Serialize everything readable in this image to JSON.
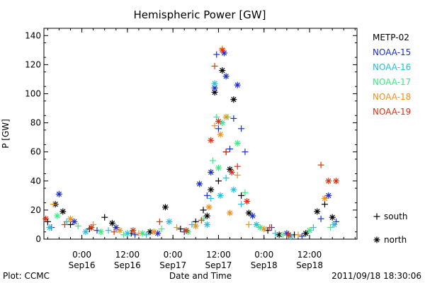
{
  "chart_data": {
    "type": "scatter",
    "title": "Hemispheric Power [GW]",
    "xlabel": "Date and Time",
    "ylabel": "P [GW]",
    "ylim": [
      0,
      145
    ],
    "xlim": [
      "2011-09-15T14:00",
      "2011-09-19T00:30"
    ],
    "yticks": [
      0,
      20,
      40,
      60,
      80,
      100,
      120,
      140
    ],
    "xticks": [
      {
        "at": "2011-09-16T00:00",
        "time": "0:00",
        "date": "Sep16"
      },
      {
        "at": "2011-09-16T12:00",
        "time": "12:00",
        "date": "Sep16"
      },
      {
        "at": "2011-09-17T00:00",
        "time": "0:00",
        "date": "Sep17"
      },
      {
        "at": "2011-09-17T12:00",
        "time": "12:00",
        "date": "Sep17"
      },
      {
        "at": "2011-09-18T00:00",
        "time": "0:00",
        "date": "Sep18"
      },
      {
        "at": "2011-09-18T12:00",
        "time": "12:00",
        "date": "Sep18"
      }
    ],
    "marker_key": [
      {
        "marker": "+",
        "label": "south"
      },
      {
        "marker": "*",
        "label": "north"
      }
    ],
    "series": [
      {
        "name": "METP-02",
        "color": "#000000",
        "points": [
          [
            "2011-09-15T15:00",
            12,
            "+"
          ],
          [
            "2011-09-15T17:00",
            24,
            "*"
          ],
          [
            "2011-09-15T19:00",
            19,
            "*"
          ],
          [
            "2011-09-15T21:00",
            10,
            "+"
          ],
          [
            "2011-09-16T02:00",
            7,
            "+"
          ],
          [
            "2011-09-16T06:00",
            15,
            "+"
          ],
          [
            "2011-09-16T08:00",
            11,
            "*"
          ],
          [
            "2011-09-16T13:00",
            4,
            "+"
          ],
          [
            "2011-09-16T18:00",
            5,
            "*"
          ],
          [
            "2011-09-16T22:00",
            22,
            "*"
          ],
          [
            "2011-09-17T02:00",
            7,
            "+"
          ],
          [
            "2011-09-17T06:00",
            12,
            "+"
          ],
          [
            "2011-09-17T08:00",
            20,
            "+"
          ],
          [
            "2011-09-17T09:00",
            16,
            "*"
          ],
          [
            "2011-09-17T10:00",
            34,
            "*"
          ],
          [
            "2011-09-17T11:00",
            101,
            "*"
          ],
          [
            "2011-09-17T12:00",
            40,
            "+"
          ],
          [
            "2011-09-17T13:00",
            116,
            "*"
          ],
          [
            "2011-09-17T14:00",
            60,
            "+"
          ],
          [
            "2011-09-17T15:00",
            48,
            "*"
          ],
          [
            "2011-09-17T16:00",
            96,
            "*"
          ],
          [
            "2011-09-17T18:00",
            30,
            "+"
          ],
          [
            "2011-09-17T20:00",
            18,
            "*"
          ],
          [
            "2011-09-18T01:00",
            6,
            "+"
          ],
          [
            "2011-09-18T04:00",
            3,
            "*"
          ],
          [
            "2011-09-18T08:00",
            3,
            "+"
          ],
          [
            "2011-09-18T11:00",
            4,
            "*"
          ],
          [
            "2011-09-18T14:00",
            19,
            "*"
          ],
          [
            "2011-09-18T16:00",
            24,
            "+"
          ],
          [
            "2011-09-18T18:00",
            15,
            "*"
          ]
        ]
      },
      {
        "name": "NOAA-15",
        "color": "#1a2fd0",
        "points": [
          [
            "2011-09-15T16:00",
            8,
            "+"
          ],
          [
            "2011-09-15T18:00",
            31,
            "*"
          ],
          [
            "2011-09-15T22:00",
            12,
            "*"
          ],
          [
            "2011-09-16T04:00",
            6,
            "+"
          ],
          [
            "2011-09-16T09:00",
            8,
            "*"
          ],
          [
            "2011-09-16T14:00",
            3,
            "+"
          ],
          [
            "2011-09-16T20:00",
            4,
            "*"
          ],
          [
            "2011-09-17T03:00",
            5,
            "+"
          ],
          [
            "2011-09-17T07:00",
            38,
            "*"
          ],
          [
            "2011-09-17T09:00",
            30,
            "+"
          ],
          [
            "2011-09-17T10:00",
            46,
            "*"
          ],
          [
            "2011-09-17T11:00",
            104,
            "*"
          ],
          [
            "2011-09-17T11:30",
            127,
            "+"
          ],
          [
            "2011-09-17T12:00",
            76,
            "+"
          ],
          [
            "2011-09-17T13:30",
            128,
            "*"
          ],
          [
            "2011-09-17T14:00",
            112,
            "*"
          ],
          [
            "2011-09-17T15:00",
            62,
            "+"
          ],
          [
            "2011-09-17T16:00",
            83,
            "+"
          ],
          [
            "2011-09-17T17:00",
            106,
            "*"
          ],
          [
            "2011-09-17T18:00",
            76,
            "+"
          ],
          [
            "2011-09-17T19:00",
            60,
            "+"
          ],
          [
            "2011-09-17T21:00",
            16,
            "*"
          ],
          [
            "2011-09-18T02:00",
            8,
            "+"
          ],
          [
            "2011-09-18T06:00",
            4,
            "*"
          ],
          [
            "2011-09-18T10:00",
            2,
            "+"
          ],
          [
            "2011-09-18T15:00",
            14,
            "+"
          ],
          [
            "2011-09-18T17:00",
            30,
            "*"
          ],
          [
            "2011-09-18T19:00",
            12,
            "+"
          ]
        ]
      },
      {
        "name": "NOAA-16",
        "color": "#20c0e0",
        "points": [
          [
            "2011-09-15T15:30",
            8,
            "*"
          ],
          [
            "2011-09-15T20:00",
            12,
            "+"
          ],
          [
            "2011-09-16T01:00",
            5,
            "*"
          ],
          [
            "2011-09-16T07:00",
            6,
            "+"
          ],
          [
            "2011-09-16T12:00",
            4,
            "*"
          ],
          [
            "2011-09-16T17:00",
            3,
            "+"
          ],
          [
            "2011-09-16T23:00",
            12,
            "*"
          ],
          [
            "2011-09-17T05:00",
            10,
            "+"
          ],
          [
            "2011-09-17T09:00",
            10,
            "*"
          ],
          [
            "2011-09-17T10:00",
            28,
            "+"
          ],
          [
            "2011-09-17T11:00",
            107,
            "*"
          ],
          [
            "2011-09-17T12:30",
            30,
            "*"
          ],
          [
            "2011-09-17T14:00",
            42,
            "+"
          ],
          [
            "2011-09-17T16:00",
            34,
            "*"
          ],
          [
            "2011-09-17T18:00",
            24,
            "+"
          ],
          [
            "2011-09-17T22:00",
            10,
            "*"
          ],
          [
            "2011-09-18T03:00",
            4,
            "+"
          ],
          [
            "2011-09-18T07:00",
            2,
            "*"
          ],
          [
            "2011-09-18T13:00",
            8,
            "+"
          ],
          [
            "2011-09-18T18:30",
            10,
            "*"
          ]
        ]
      },
      {
        "name": "NOAA-17",
        "color": "#30f080",
        "points": [
          [
            "2011-09-15T17:30",
            16,
            "*"
          ],
          [
            "2011-09-15T23:00",
            9,
            "+"
          ],
          [
            "2011-09-16T05:00",
            5,
            "*"
          ],
          [
            "2011-09-16T11:00",
            3,
            "+"
          ],
          [
            "2011-09-16T16:00",
            4,
            "*"
          ],
          [
            "2011-09-16T21:00",
            7,
            "+"
          ],
          [
            "2011-09-17T04:00",
            5,
            "*"
          ],
          [
            "2011-09-17T08:00",
            14,
            "+"
          ],
          [
            "2011-09-17T10:30",
            54,
            "+"
          ],
          [
            "2011-09-17T11:30",
            84,
            "+"
          ],
          [
            "2011-09-17T12:00",
            49,
            "*"
          ],
          [
            "2011-09-17T13:00",
            80,
            "*"
          ],
          [
            "2011-09-17T14:30",
            84,
            "+"
          ],
          [
            "2011-09-17T17:00",
            66,
            "*"
          ],
          [
            "2011-09-17T19:00",
            32,
            "+"
          ],
          [
            "2011-09-17T23:00",
            8,
            "*"
          ],
          [
            "2011-09-18T05:00",
            3,
            "+"
          ],
          [
            "2011-09-18T12:00",
            6,
            "*"
          ],
          [
            "2011-09-18T17:30",
            8,
            "+"
          ]
        ]
      },
      {
        "name": "NOAA-18",
        "color": "#f0901a",
        "points": [
          [
            "2011-09-15T16:30",
            24,
            "+"
          ],
          [
            "2011-09-15T21:00",
            14,
            "*"
          ],
          [
            "2011-09-16T03:00",
            10,
            "+"
          ],
          [
            "2011-09-16T10:00",
            6,
            "*"
          ],
          [
            "2011-09-16T15:00",
            4,
            "+"
          ],
          [
            "2011-09-16T19:00",
            5,
            "*"
          ],
          [
            "2011-09-17T01:00",
            8,
            "+"
          ],
          [
            "2011-09-17T06:00",
            9,
            "*"
          ],
          [
            "2011-09-17T09:30",
            22,
            "*"
          ],
          [
            "2011-09-17T11:00",
            78,
            "+"
          ],
          [
            "2011-09-17T12:30",
            72,
            "*"
          ],
          [
            "2011-09-17T13:00",
            131,
            "+"
          ],
          [
            "2011-09-17T14:00",
            84,
            "*"
          ],
          [
            "2011-09-17T15:00",
            18,
            "*"
          ],
          [
            "2011-09-17T17:00",
            44,
            "+"
          ],
          [
            "2011-09-17T20:00",
            10,
            "+"
          ],
          [
            "2011-09-18T00:00",
            7,
            "*"
          ],
          [
            "2011-09-18T09:00",
            3,
            "+"
          ],
          [
            "2011-09-18T16:00",
            28,
            "*"
          ]
        ]
      },
      {
        "name": "NOAA-19",
        "color": "#e03010",
        "points": [
          [
            "2011-09-15T14:30",
            14,
            "*"
          ],
          [
            "2011-09-15T19:30",
            10,
            "+"
          ],
          [
            "2011-09-16T02:30",
            8,
            "*"
          ],
          [
            "2011-09-16T08:30",
            5,
            "+"
          ],
          [
            "2011-09-16T13:30",
            6,
            "*"
          ],
          [
            "2011-09-16T20:30",
            12,
            "+"
          ],
          [
            "2011-09-17T03:30",
            6,
            "*"
          ],
          [
            "2011-09-17T07:30",
            13,
            "+"
          ],
          [
            "2011-09-17T10:00",
            68,
            "*"
          ],
          [
            "2011-09-17T11:00",
            119,
            "+"
          ],
          [
            "2011-09-17T12:00",
            81,
            "*"
          ],
          [
            "2011-09-17T13:00",
            130,
            "*"
          ],
          [
            "2011-09-17T14:00",
            60,
            "+"
          ],
          [
            "2011-09-17T15:30",
            46,
            "*"
          ],
          [
            "2011-09-17T17:00",
            50,
            "+"
          ],
          [
            "2011-09-17T19:30",
            26,
            "*"
          ],
          [
            "2011-09-18T01:30",
            8,
            "+"
          ],
          [
            "2011-09-18T06:30",
            3,
            "*"
          ],
          [
            "2011-09-18T15:00",
            51,
            "+"
          ],
          [
            "2011-09-18T17:00",
            40,
            "*"
          ],
          [
            "2011-09-18T19:00",
            40,
            "*"
          ]
        ]
      }
    ]
  },
  "footer": {
    "left": "Plot: CCMC",
    "right": "2011/09/18 18:30:06"
  }
}
